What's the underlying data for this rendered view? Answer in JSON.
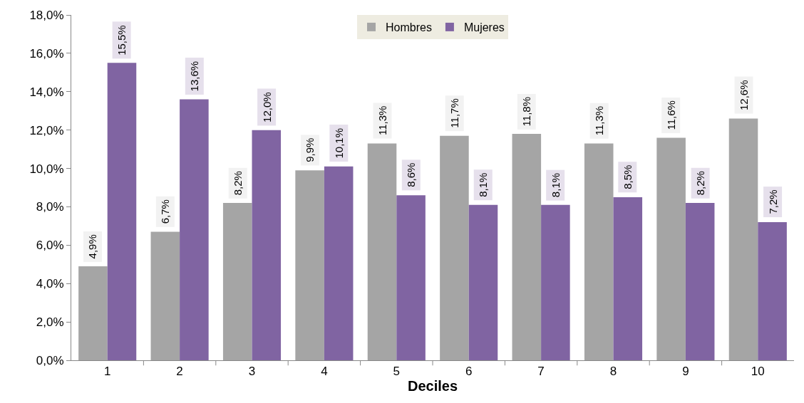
{
  "chart_data": {
    "type": "bar",
    "xlabel": "Deciles",
    "categories": [
      "1",
      "2",
      "3",
      "4",
      "5",
      "6",
      "7",
      "8",
      "9",
      "10"
    ],
    "series": [
      {
        "name": "Hombres",
        "color": "#a5a5a5",
        "values": [
          4.9,
          6.7,
          8.2,
          9.9,
          11.3,
          11.7,
          11.8,
          11.3,
          11.6,
          12.6
        ],
        "value_labels": [
          "4,9%",
          "6,7%",
          "8,2%",
          "9,9%",
          "11,3%",
          "11,7%",
          "11,8%",
          "11,3%",
          "11,6%",
          "12,6%"
        ]
      },
      {
        "name": "Mujeres",
        "color": "#8064a2",
        "values": [
          15.5,
          13.6,
          12.0,
          10.1,
          8.6,
          8.1,
          8.1,
          8.5,
          8.2,
          7.2
        ],
        "value_labels": [
          "15,5%",
          "13,6%",
          "12,0%",
          "10,1%",
          "8,6%",
          "8,1%",
          "8,1%",
          "8,5%",
          "8,2%",
          "7,2%"
        ]
      }
    ],
    "ylim": [
      0,
      18
    ],
    "yticks": [
      {
        "value": 0,
        "label": "0,0%"
      },
      {
        "value": 2,
        "label": "2,0%"
      },
      {
        "value": 4,
        "label": "4,0%"
      },
      {
        "value": 6,
        "label": "6,0%"
      },
      {
        "value": 8,
        "label": "8,0%"
      },
      {
        "value": 10,
        "label": "10,0%"
      },
      {
        "value": 12,
        "label": "12,0%"
      },
      {
        "value": 14,
        "label": "14,0%"
      },
      {
        "value": 16,
        "label": "16,0%"
      },
      {
        "value": 18,
        "label": "18,0%"
      }
    ],
    "grid": false,
    "legend": "top"
  }
}
